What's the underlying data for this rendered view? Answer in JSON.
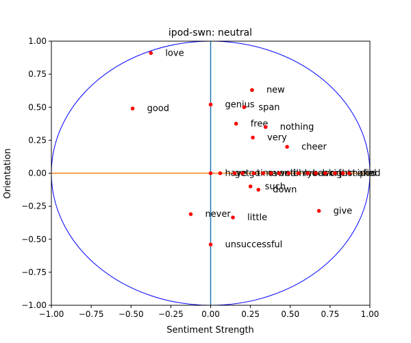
{
  "chart_data": {
    "type": "scatter",
    "title": "ipod-swn: neutral",
    "xlabel": "Sentiment Strength",
    "ylabel": "Orientation",
    "xlim": [
      -1.0,
      1.0
    ],
    "ylim": [
      -1.0,
      1.0
    ],
    "xticks": [
      "−1.00",
      "−0.75",
      "−0.50",
      "−0.25",
      "0.00",
      "0.25",
      "0.50",
      "0.75",
      "1.00"
    ],
    "yticks": [
      "1.00",
      "0.75",
      "0.50",
      "0.25",
      "0.00",
      "−0.25",
      "−0.50",
      "−0.75",
      "−1.00"
    ],
    "grid": false,
    "point_color": "#ff0000",
    "circle_color": "#0000ff",
    "x_axis_line_color": "#ff7f0e",
    "y_axis_line_color": "#1f77b4",
    "points": [
      {
        "label": "love",
        "x": -0.375,
        "y": 0.91
      },
      {
        "label": "good",
        "x": -0.49,
        "y": 0.49
      },
      {
        "label": "new",
        "x": 0.26,
        "y": 0.63
      },
      {
        "label": "genius",
        "x": 0.0,
        "y": 0.52
      },
      {
        "label": "span",
        "x": 0.21,
        "y": 0.5
      },
      {
        "label": "free",
        "x": 0.16,
        "y": 0.375
      },
      {
        "label": "nothing",
        "x": 0.345,
        "y": 0.35
      },
      {
        "label": "very",
        "x": 0.265,
        "y": 0.27
      },
      {
        "label": "cheer",
        "x": 0.48,
        "y": 0.2
      },
      {
        "label": "have",
        "x": 0.0,
        "y": 0.0
      },
      {
        "label": "get",
        "x": 0.06,
        "y": 0.0
      },
      {
        "label": "go",
        "x": 0.15,
        "y": 0.0
      },
      {
        "label": "time",
        "x": 0.2,
        "y": 0.0
      },
      {
        "label": "even",
        "x": 0.27,
        "y": 0.0
      },
      {
        "label": "well",
        "x": 0.33,
        "y": 0.0
      },
      {
        "label": "still",
        "x": 0.38,
        "y": 0.0
      },
      {
        "label": "only",
        "x": 0.43,
        "y": 0.0
      },
      {
        "label": "much",
        "x": 0.49,
        "y": 0.0
      },
      {
        "label": "back",
        "x": 0.55,
        "y": 0.0
      },
      {
        "label": "work",
        "x": 0.61,
        "y": 0.0
      },
      {
        "label": "right",
        "x": 0.66,
        "y": 0.0
      },
      {
        "label": "just",
        "x": 0.72,
        "y": 0.0
      },
      {
        "label": "make",
        "x": 0.78,
        "y": 0.0
      },
      {
        "label": "ipod",
        "x": 0.83,
        "y": 0.0
      },
      {
        "label": "find",
        "x": 0.87,
        "y": 0.0
      },
      {
        "label": "such",
        "x": 0.25,
        "y": -0.1
      },
      {
        "label": "down",
        "x": 0.3,
        "y": -0.125
      },
      {
        "label": "give",
        "x": 0.68,
        "y": -0.285
      },
      {
        "label": "never",
        "x": -0.125,
        "y": -0.31
      },
      {
        "label": "little",
        "x": 0.14,
        "y": -0.335
      },
      {
        "label": "unsuccessful",
        "x": 0.0,
        "y": -0.54
      }
    ]
  }
}
